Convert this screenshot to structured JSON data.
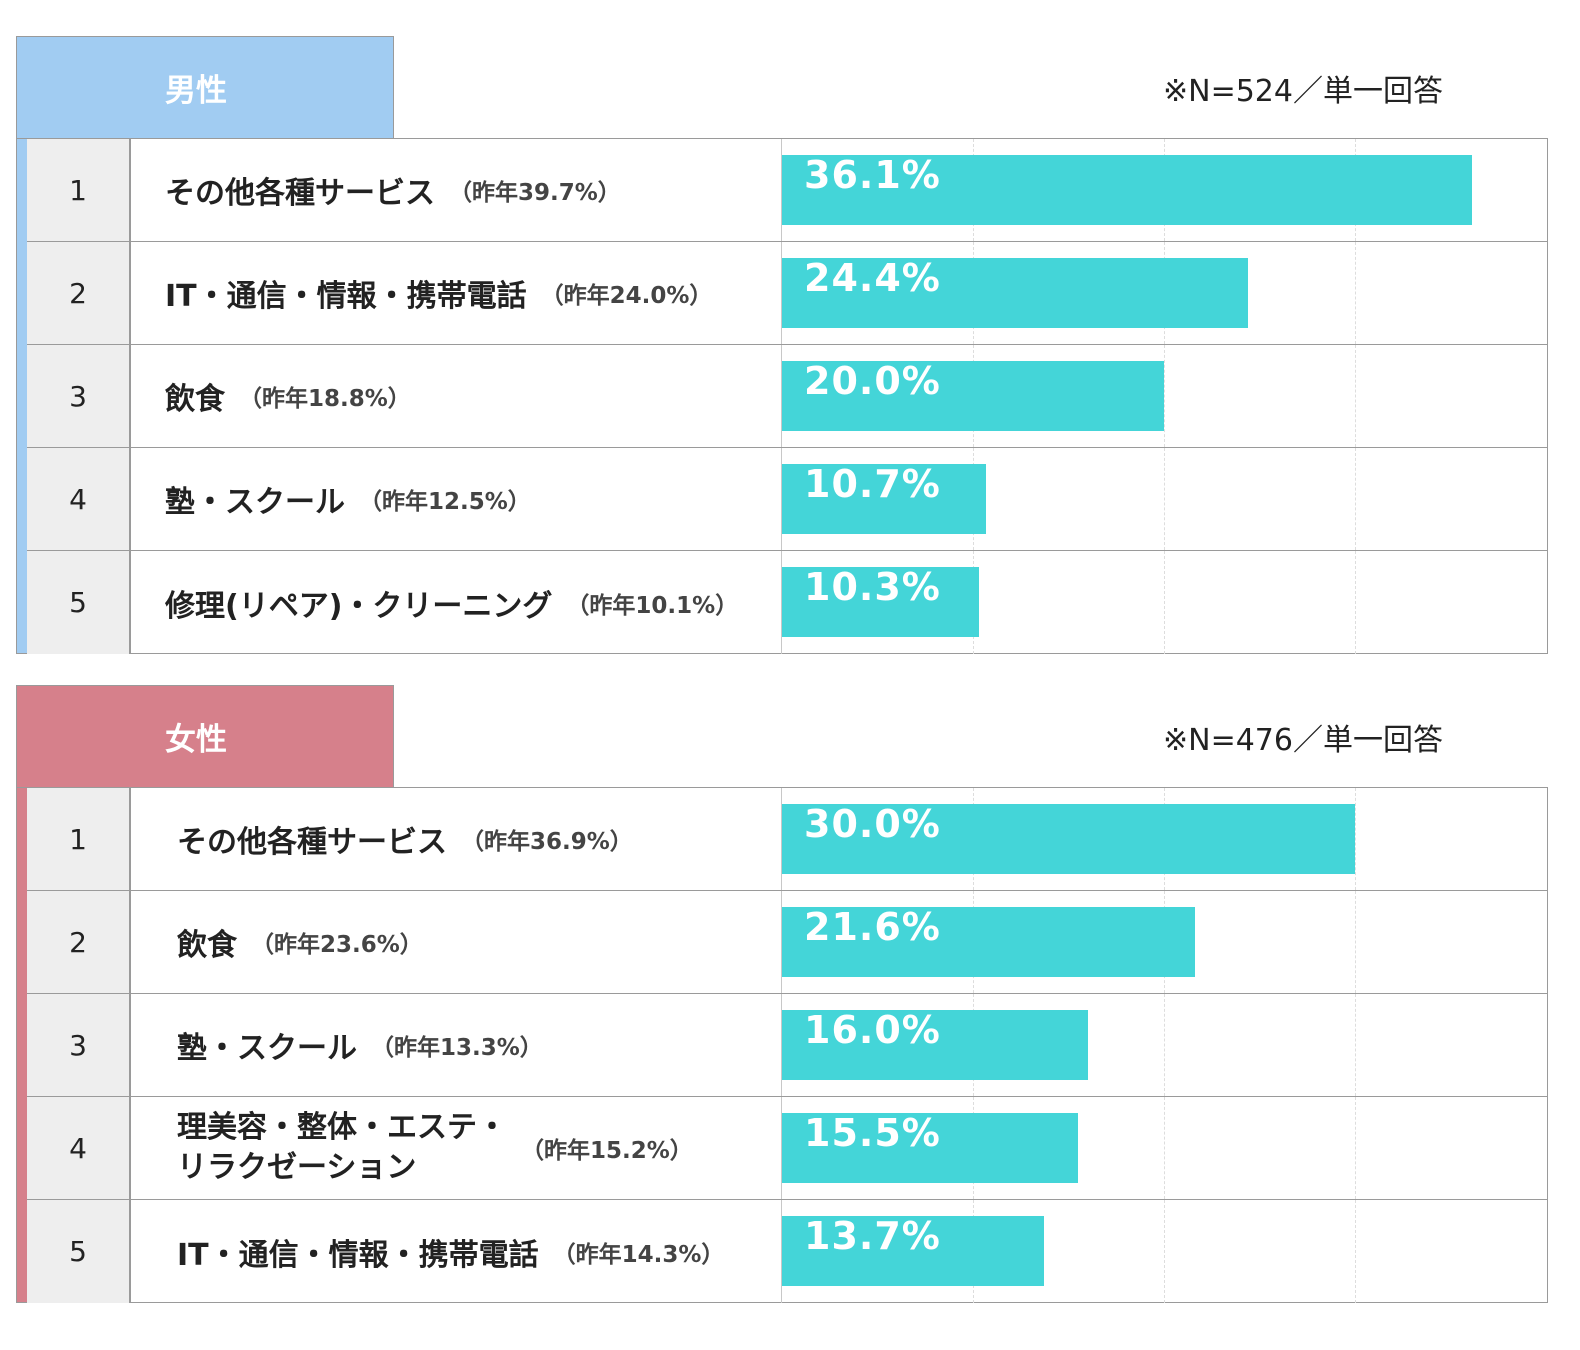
{
  "colors": {
    "male": "#a1ccf2",
    "female": "#d6808b",
    "bar": "#44d5d8"
  },
  "chart_data": [
    {
      "type": "bar",
      "title": "男性",
      "note": "※N=524／単一回答",
      "ylim": [
        0,
        40
      ],
      "ranks": [
        "1",
        "2",
        "3",
        "4",
        "5"
      ],
      "categories": [
        "その他各種サービス",
        "IT・通信・情報・携帯電話",
        "飲食",
        "塾・スクール",
        "修理(リペア)・クリーニング"
      ],
      "previous_labels": [
        "（昨年39.7%）",
        "（昨年24.0%）",
        "（昨年18.8%）",
        "（昨年12.5%）",
        "（昨年10.1%）"
      ],
      "values": [
        36.1,
        24.4,
        20.0,
        10.7,
        10.3
      ],
      "value_labels": [
        "36.1%",
        "24.4%",
        "20.0%",
        "10.7%",
        "10.3%"
      ]
    },
    {
      "type": "bar",
      "title": "女性",
      "note": "※N=476／単一回答",
      "ylim": [
        0,
        40
      ],
      "ranks": [
        "1",
        "2",
        "3",
        "4",
        "5"
      ],
      "categories": [
        "その他各種サービス",
        "飲食",
        "塾・スクール",
        "理美容・整体・エステ・リラクゼーション",
        "IT・通信・情報・携帯電話"
      ],
      "previous_labels": [
        "（昨年36.9%）",
        "（昨年23.6%）",
        "（昨年13.3%）",
        "（昨年15.2%）",
        "（昨年14.3%）"
      ],
      "values": [
        30.0,
        21.6,
        16.0,
        15.5,
        13.7
      ],
      "value_labels": [
        "30.0%",
        "21.6%",
        "16.0%",
        "15.5%",
        "13.7%"
      ]
    }
  ]
}
